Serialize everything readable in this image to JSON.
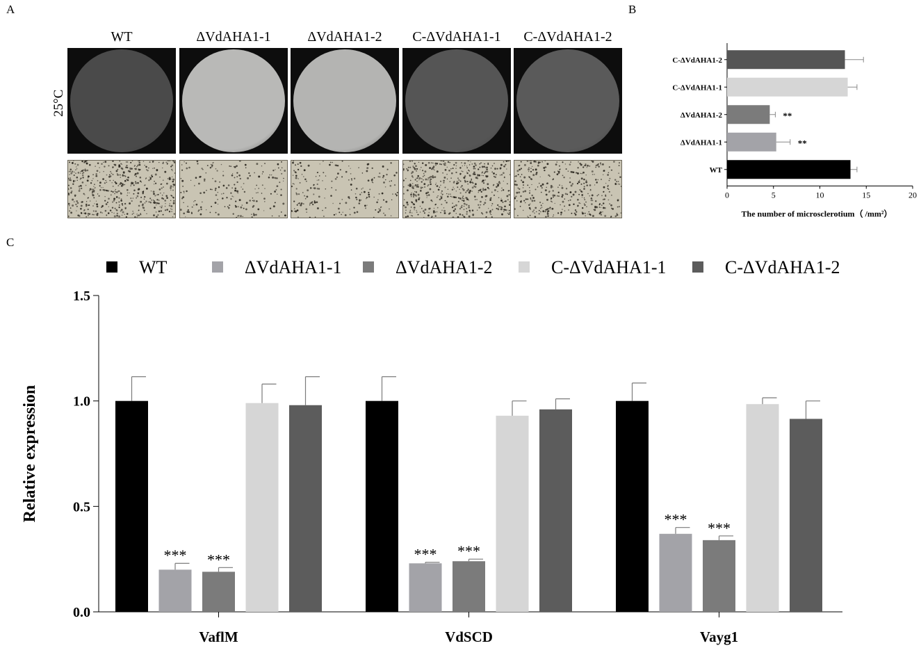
{
  "panels": {
    "a": "A",
    "b": "B",
    "c": "C"
  },
  "panel_a": {
    "temperature": "25°C",
    "strains": [
      "WT",
      "ΔVdAHA1-1",
      "ΔVdAHA1-2",
      "C-ΔVdAHA1-1",
      "C-ΔVdAHA1-2"
    ],
    "plate_colors": [
      "#4a4a4a",
      "#b9b9b7",
      "#b4b4b2",
      "#555555",
      "#5a5a5a"
    ],
    "micro_densities": [
      "high",
      "low",
      "low",
      "high",
      "medium"
    ]
  },
  "chart_data": [
    {
      "type": "bar",
      "orientation": "horizontal",
      "categories": [
        "WT",
        "ΔVdAHA1-1",
        "ΔVdAHA1-2",
        "C-ΔVdAHA1-1",
        "C-ΔVdAHA1-2"
      ],
      "values": [
        13.3,
        5.3,
        4.6,
        13.0,
        12.7
      ],
      "errors": [
        0.7,
        1.5,
        0.6,
        1.0,
        2.0
      ],
      "significance": [
        "",
        "**",
        "**",
        "",
        ""
      ],
      "colors": [
        "#000000",
        "#a3a3a8",
        "#7b7b7b",
        "#d6d6d6",
        "#555555"
      ],
      "xlabel": "The number of microsclerotium（ /mm²）",
      "xlim": [
        0,
        20
      ],
      "xticks": [
        0,
        5,
        10,
        15,
        20
      ]
    },
    {
      "type": "bar",
      "categories": [
        "VaflM",
        "VdSCD",
        "Vayg1"
      ],
      "series": [
        {
          "name": "WT",
          "values": [
            1.0,
            1.0,
            1.0
          ],
          "errors": [
            0.115,
            0.115,
            0.085
          ],
          "significance": [
            "",
            "",
            ""
          ]
        },
        {
          "name": "ΔVdAHA1-1",
          "values": [
            0.2,
            0.23,
            0.37
          ],
          "errors": [
            0.03,
            0.005,
            0.03
          ],
          "significance": [
            "***",
            "***",
            "***"
          ]
        },
        {
          "name": "ΔVdAHA1-2",
          "values": [
            0.19,
            0.24,
            0.34
          ],
          "errors": [
            0.02,
            0.01,
            0.02
          ],
          "significance": [
            "***",
            "***",
            "***"
          ]
        },
        {
          "name": "C-ΔVdAHA1-1",
          "values": [
            0.99,
            0.93,
            0.985
          ],
          "errors": [
            0.09,
            0.07,
            0.03
          ],
          "significance": [
            "",
            "",
            ""
          ]
        },
        {
          "name": "C-ΔVdAHA1-2",
          "values": [
            0.98,
            0.96,
            0.915
          ],
          "errors": [
            0.135,
            0.05,
            0.085
          ],
          "significance": [
            "",
            "",
            ""
          ]
        }
      ],
      "colors": [
        "#000000",
        "#a3a3a8",
        "#7b7b7b",
        "#d6d6d6",
        "#5c5c5c"
      ],
      "ylabel": "Relative expression",
      "ylim": [
        0,
        1.5
      ],
      "yticks": [
        "0.0",
        "0.5",
        "1.0",
        "1.5"
      ],
      "legend": "top"
    }
  ]
}
